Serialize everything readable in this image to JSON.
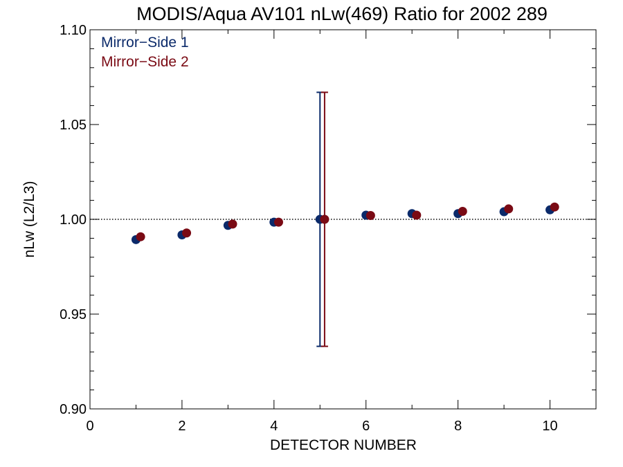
{
  "chart_data": {
    "type": "scatter",
    "title": "MODIS/Aqua AV101 nLw(469) Ratio for 2002 289",
    "xlabel": "DETECTOR NUMBER",
    "ylabel": "nLw (L2/L3)",
    "xlim": [
      0,
      11
    ],
    "ylim": [
      0.9,
      1.1
    ],
    "xticks": [
      0,
      2,
      4,
      6,
      8,
      10
    ],
    "xtick_labels": [
      "0",
      "2",
      "4",
      "6",
      "8",
      "10"
    ],
    "yticks": [
      0.9,
      0.95,
      1.0,
      1.05,
      1.1
    ],
    "ytick_labels": [
      "0.90",
      "0.95",
      "1.00",
      "1.05",
      "1.10"
    ],
    "reference_line": 1.0,
    "legend_position": "top-left",
    "series": [
      {
        "name": "Mirror−Side 1",
        "color": "#0b2a6a",
        "x": [
          1,
          2,
          3,
          4,
          5,
          6,
          7,
          8,
          9,
          10
        ],
        "y": [
          0.9893,
          0.9918,
          0.9968,
          0.9985,
          1.0,
          1.0022,
          1.003,
          1.003,
          1.004,
          1.005
        ],
        "error_bars": [
          {
            "x": 5,
            "low": 0.933,
            "high": 1.067
          }
        ]
      },
      {
        "name": "Mirror−Side 2",
        "color": "#7a0a14",
        "x": [
          1.1,
          2.1,
          3.1,
          4.1,
          5.1,
          6.1,
          7.1,
          8.1,
          9.1,
          10.1
        ],
        "y": [
          0.9908,
          0.9928,
          0.9975,
          0.9985,
          1.0,
          1.002,
          1.0022,
          1.0042,
          1.0055,
          1.0065
        ],
        "error_bars": [
          {
            "x": 5.1,
            "low": 0.933,
            "high": 1.067
          }
        ]
      }
    ]
  }
}
